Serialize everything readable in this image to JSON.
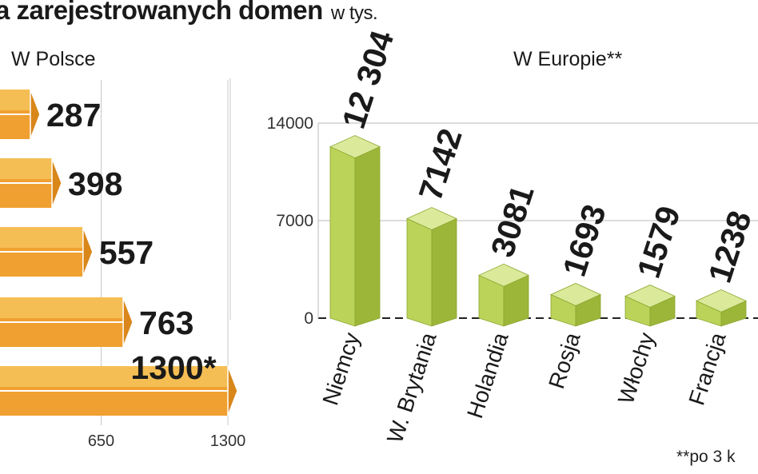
{
  "title": "a zarejestrowanych domen",
  "unit": "w tys.",
  "footnote": "**po 3 k",
  "colors": {
    "pl_bar": "#f0a030",
    "pl_bar_top": "#f7c860",
    "pl_bar_side": "#d9861a",
    "eu_bar": "#bcd35a",
    "eu_bar_top": "#dbe99a",
    "eu_bar_side": "#9cb63a"
  },
  "chart_data": [
    {
      "type": "bar",
      "orientation": "horizontal",
      "title": "W Polsce",
      "values": [
        287,
        398,
        557,
        763,
        1300
      ],
      "data_labels": [
        "287",
        "398",
        "557",
        "763",
        "1300*"
      ],
      "xlim": [
        0,
        1300
      ],
      "xticks": [
        "650",
        "1300"
      ],
      "grid": true
    },
    {
      "type": "bar",
      "title": "W Europie**",
      "categories": [
        "Niemcy",
        "W. Brytania",
        "Holandia",
        "Rosja",
        "Włochy",
        "Francja"
      ],
      "values": [
        12304,
        7142,
        3081,
        1693,
        1579,
        1238
      ],
      "data_labels": [
        "12 304",
        "7142",
        "3081",
        "1693",
        "1579",
        "1238"
      ],
      "ylim": [
        0,
        14000
      ],
      "yticks": [
        "0",
        "7000",
        "14000"
      ],
      "grid": true
    }
  ]
}
